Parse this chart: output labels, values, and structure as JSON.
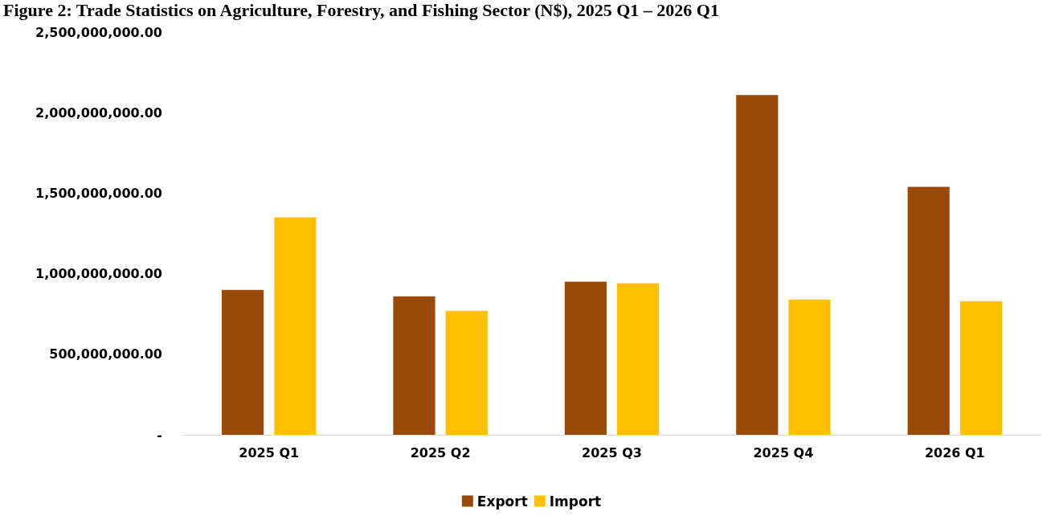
{
  "chart_data": {
    "type": "bar",
    "title": "Figure 2: Trade Statistics on Agriculture, Forestry, and Fishing Sector (N$), 2025 Q1 – 2026 Q1",
    "categories": [
      "2025 Q1",
      "2025 Q2",
      "2025 Q3",
      "2025 Q4",
      "2026 Q1"
    ],
    "series": [
      {
        "name": "Export",
        "color": "#994a08",
        "values": [
          900000000,
          860000000,
          950000000,
          2110000000,
          1540000000
        ]
      },
      {
        "name": "Import",
        "color": "#ffc000",
        "values": [
          1350000000,
          770000000,
          940000000,
          840000000,
          830000000
        ]
      }
    ],
    "ylim": [
      0,
      2500000000
    ],
    "yticks": [
      {
        "value": 0,
        "label": "-"
      },
      {
        "value": 500000000,
        "label": "500,000,000.00"
      },
      {
        "value": 1000000000,
        "label": "1,000,000,000.00"
      },
      {
        "value": 1500000000,
        "label": "1,500,000,000.00"
      },
      {
        "value": 2000000000,
        "label": "2,000,000,000.00"
      },
      {
        "value": 2500000000,
        "label": "2,500,000,000.00"
      }
    ],
    "grid": false,
    "legend": "bottom"
  }
}
